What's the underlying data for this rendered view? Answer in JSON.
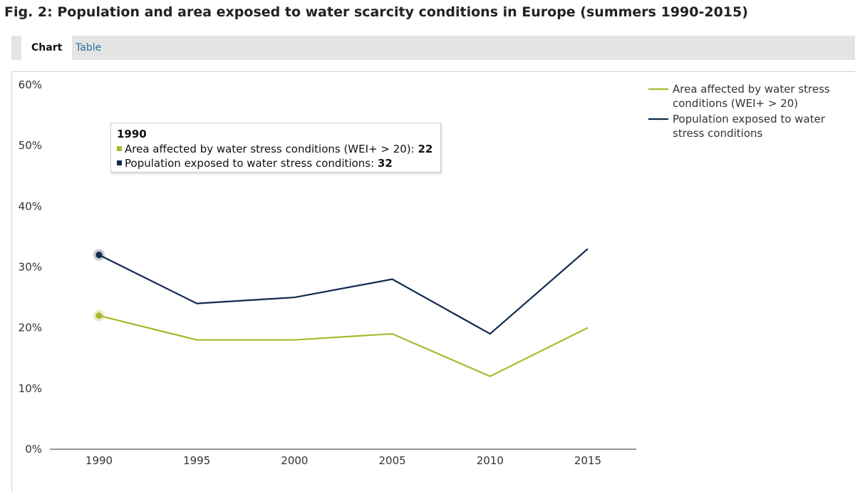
{
  "page": {
    "title": "Fig. 2: Population and area exposed to water scarcity conditions in Europe (summers 1990-2015)"
  },
  "tabs": [
    {
      "label": "Chart",
      "active": true
    },
    {
      "label": "Table",
      "active": false
    }
  ],
  "tooltip": {
    "title": "1990",
    "rows": [
      {
        "label": "Area affected by water stress conditions (WEI+ > 20): ",
        "value": "22",
        "color": "#aab82e"
      },
      {
        "label": "Population exposed to water stress conditions: ",
        "value": "32",
        "color": "#0f2a4a"
      }
    ]
  },
  "colors": {
    "area": "#aab82e",
    "population": "#0f2a4a"
  },
  "chart_data": {
    "type": "line",
    "title": "Fig. 2: Population and area exposed to water scarcity conditions in Europe (summers 1990-2015)",
    "xlabel": "",
    "ylabel": "",
    "categories": [
      "1990",
      "1995",
      "2000",
      "2005",
      "2010",
      "2015"
    ],
    "y_ticks": [
      "0%",
      "10%",
      "20%",
      "30%",
      "40%",
      "50%",
      "60%"
    ],
    "ylim": [
      0,
      60
    ],
    "grid": false,
    "legend_position": "top-right",
    "series": [
      {
        "name": "Area affected by water stress conditions (WEI+ > 20)",
        "legend_lines": [
          "Area affected by water stress",
          "conditions (WEI+ > 20)"
        ],
        "values": [
          22,
          18,
          18,
          19,
          12,
          20
        ],
        "color": "#aab82e"
      },
      {
        "name": "Population exposed to water stress conditions",
        "legend_lines": [
          "Population exposed to water",
          "stress conditions"
        ],
        "values": [
          32,
          24,
          25,
          28,
          19,
          33
        ],
        "color": "#0f2a4a"
      }
    ],
    "highlighted_category": "1990"
  }
}
